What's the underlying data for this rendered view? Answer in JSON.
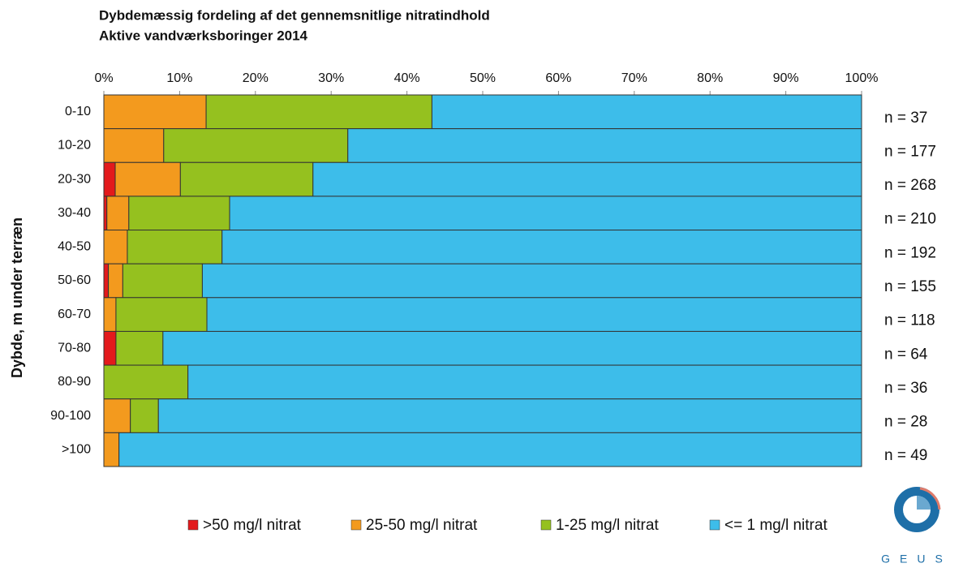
{
  "chart_data": {
    "type": "stacked_barh",
    "title": "Dybdemæssig fordeling af det gennemsnitlige nitratindhold",
    "subtitle": "Aktive vandværksboringer 2014",
    "y_label": "Dybde, m under terræn",
    "categories": [
      "0-10",
      "10-20",
      "20-30",
      "30-40",
      "40-50",
      "50-60",
      "60-70",
      "70-80",
      "80-90",
      "90-100",
      ">100"
    ],
    "series": [
      {
        "name": ">50 mg/l nitrat",
        "color": "#e31a1c",
        "values": [
          0,
          0,
          1.5,
          0.4,
          0,
          0.6,
          0,
          1.6,
          0,
          0,
          0
        ]
      },
      {
        "name": "25-50 mg/l nitrat",
        "color": "#f39a1e",
        "values": [
          13.5,
          7.9,
          8.6,
          2.9,
          3.1,
          1.9,
          1.6,
          0,
          0,
          3.5,
          2.0
        ]
      },
      {
        "name": "1-25 mg/l nitrat",
        "color": "#95c11f",
        "values": [
          29.8,
          24.3,
          17.5,
          13.3,
          12.5,
          10.5,
          12.0,
          6.2,
          11.1,
          3.7,
          0
        ]
      },
      {
        "name": "<= 1 mg/l nitrat",
        "color": "#3dbdea",
        "values": [
          56.7,
          67.8,
          72.4,
          83.4,
          84.4,
          87.0,
          86.4,
          92.2,
          88.9,
          92.8,
          98.0
        ]
      }
    ],
    "n_labels": [
      "n = 37",
      "n = 177",
      "n = 268",
      "n = 210",
      "n = 192",
      "n = 155",
      "n = 118",
      "n = 64",
      "n = 36",
      "n = 28",
      "n = 49"
    ],
    "xlim": [
      0,
      100
    ],
    "xticks": [
      {
        "value": 0,
        "label": "0%"
      },
      {
        "value": 10,
        "label": "10%"
      },
      {
        "value": 20,
        "label": "20%"
      },
      {
        "value": 30,
        "label": "30%"
      },
      {
        "value": 40,
        "label": "40%"
      },
      {
        "value": 50,
        "label": "50%"
      },
      {
        "value": 60,
        "label": "60%"
      },
      {
        "value": 70,
        "label": "70%"
      },
      {
        "value": 80,
        "label": "80%"
      },
      {
        "value": 90,
        "label": "90%"
      },
      {
        "value": 100,
        "label": "100%"
      }
    ],
    "legend": "bottom",
    "logo_text": "GEUS"
  }
}
